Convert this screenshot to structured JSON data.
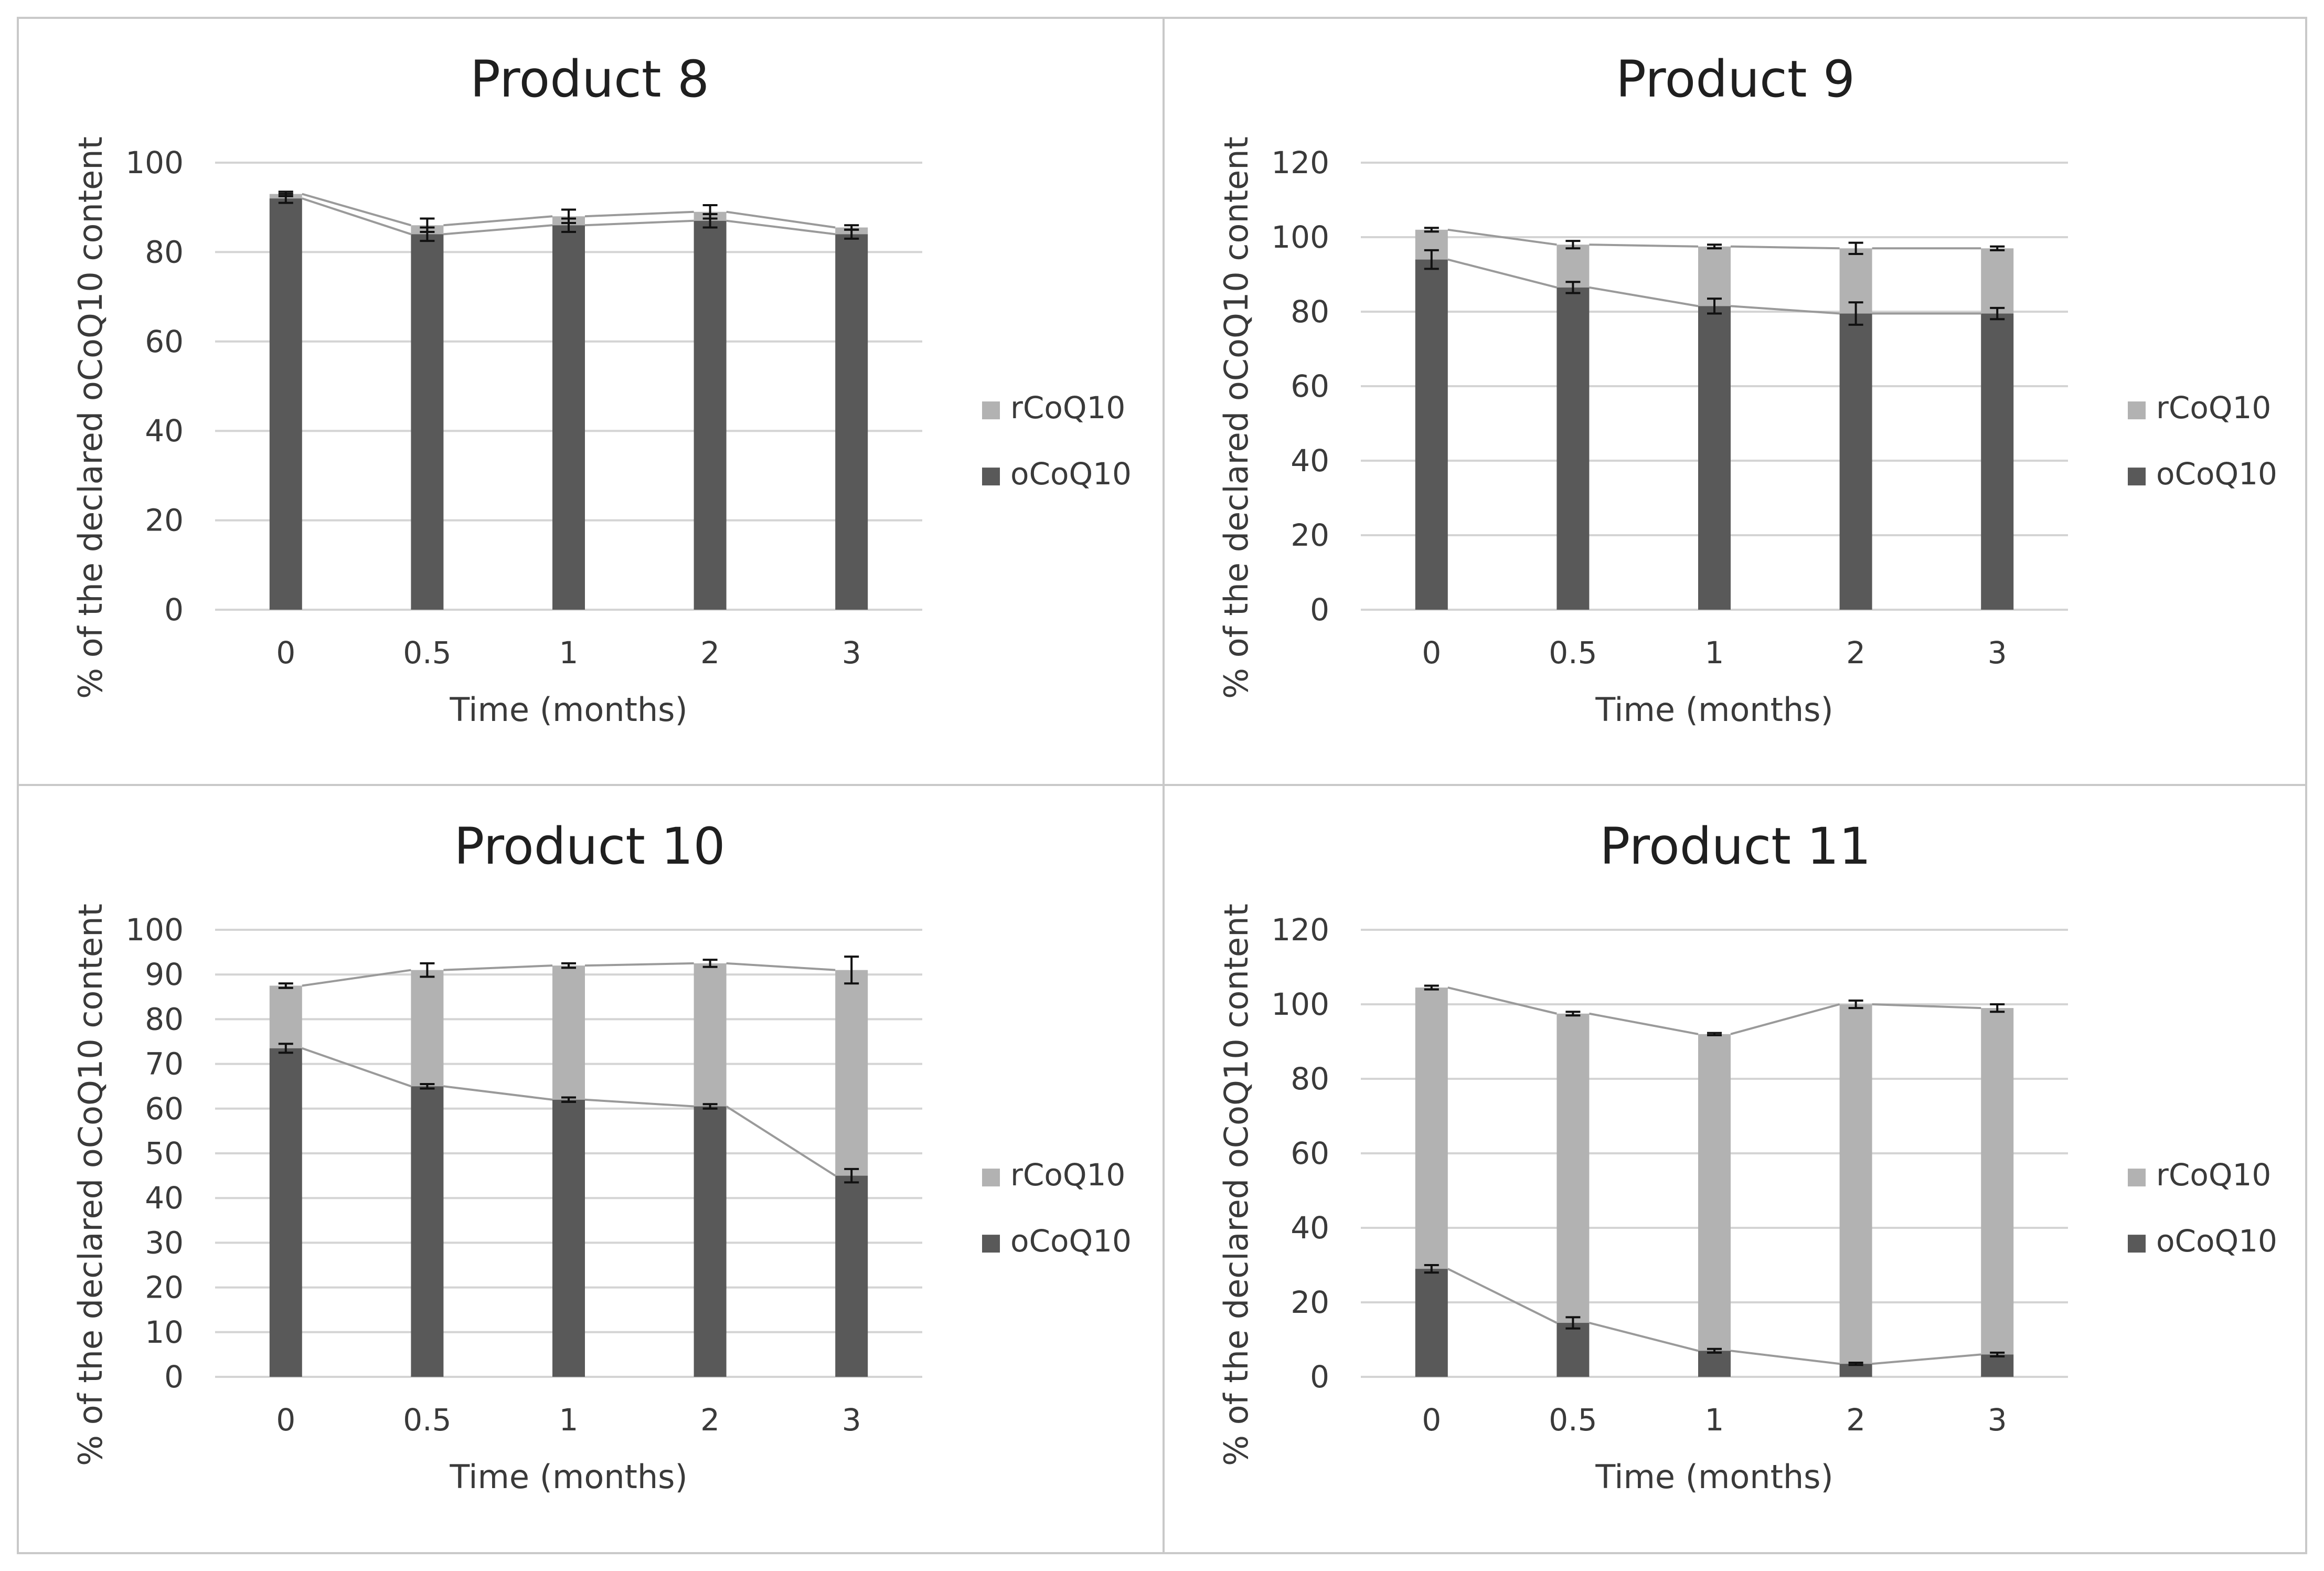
{
  "colors": {
    "rCoQ10": "#b2b2b2",
    "oCoQ10": "#595959",
    "grid": "#d4d4d4",
    "connector": "#9a9a9a"
  },
  "chart_data": [
    {
      "type": "bar",
      "stacked": true,
      "title": "Product 8",
      "xlabel": "Time (months)",
      "ylabel": "% of the declared oCoQ10  content",
      "ylim": [
        0,
        100
      ],
      "yticks": [
        0,
        20,
        40,
        60,
        80,
        100
      ],
      "categories": [
        "0",
        "0.5",
        "1",
        "2",
        "3"
      ],
      "legend": [
        "rCoQ10",
        "oCoQ10"
      ],
      "legend_position": "right",
      "series": [
        {
          "name": "oCoQ10",
          "values": [
            92,
            84,
            86,
            87,
            84
          ],
          "errors": [
            1,
            1.5,
            1.5,
            1.5,
            1
          ]
        },
        {
          "name": "rCoQ10",
          "values": [
            1,
            2,
            2,
            2,
            1.5
          ],
          "errors": [
            0.5,
            1.5,
            1.5,
            1.5,
            0.5
          ]
        }
      ]
    },
    {
      "type": "bar",
      "stacked": true,
      "title": "Product 9",
      "xlabel": "Time (months)",
      "ylabel": "% of the declared oCoQ10  content",
      "ylim": [
        0,
        120
      ],
      "yticks": [
        0,
        20,
        40,
        60,
        80,
        100,
        120
      ],
      "categories": [
        "0",
        "0.5",
        "1",
        "2",
        "3"
      ],
      "legend": [
        "rCoQ10",
        "oCoQ10"
      ],
      "legend_position": "right",
      "series": [
        {
          "name": "oCoQ10",
          "values": [
            94,
            86.5,
            81.5,
            79.5,
            79.5
          ],
          "errors": [
            2.5,
            1.5,
            2,
            3,
            1.5
          ]
        },
        {
          "name": "rCoQ10",
          "values": [
            8,
            11.5,
            16,
            17.5,
            17.5
          ],
          "errors": [
            0.5,
            1,
            0.5,
            1.5,
            0.5
          ]
        }
      ]
    },
    {
      "type": "bar",
      "stacked": true,
      "title": "Product 10",
      "xlabel": "Time (months)",
      "ylabel": "% of the declared oCoQ10  content",
      "ylim": [
        0,
        100
      ],
      "yticks": [
        0,
        10,
        20,
        30,
        40,
        50,
        60,
        70,
        80,
        90,
        100
      ],
      "categories": [
        "0",
        "0.5",
        "1",
        "2",
        "3"
      ],
      "legend": [
        "rCoQ10",
        "oCoQ10"
      ],
      "legend_position": "right",
      "series": [
        {
          "name": "oCoQ10",
          "values": [
            73.5,
            65,
            62,
            60.5,
            45
          ],
          "errors": [
            1,
            0.5,
            0.5,
            0.5,
            1.5
          ]
        },
        {
          "name": "rCoQ10",
          "values": [
            14,
            26,
            30,
            32,
            46
          ],
          "errors": [
            0.5,
            1.5,
            0.5,
            0.8,
            3
          ]
        }
      ]
    },
    {
      "type": "bar",
      "stacked": true,
      "title": "Product 11",
      "xlabel": "Time (months)",
      "ylabel": "% of the declared oCoQ10  content",
      "ylim": [
        0,
        120
      ],
      "yticks": [
        0,
        20,
        40,
        60,
        80,
        100,
        120
      ],
      "categories": [
        "0",
        "0.5",
        "1",
        "2",
        "3"
      ],
      "legend": [
        "rCoQ10",
        "oCoQ10"
      ],
      "legend_position": "right",
      "series": [
        {
          "name": "oCoQ10",
          "values": [
            29,
            14.5,
            7,
            3.5,
            6
          ],
          "errors": [
            1,
            1.5,
            0.5,
            0.3,
            0.5
          ]
        },
        {
          "name": "rCoQ10",
          "values": [
            75.5,
            83,
            85,
            96.5,
            93
          ],
          "errors": [
            0.5,
            0.5,
            0.3,
            1,
            1
          ]
        }
      ]
    }
  ]
}
